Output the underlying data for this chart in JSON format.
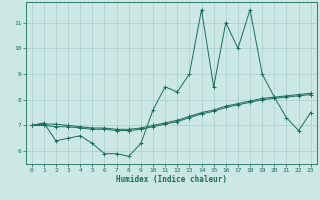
{
  "xlabel": "Humidex (Indice chaleur)",
  "bg_color": "#cce8e4",
  "line_color": "#1a6b5a",
  "grid_color": "#aacccc",
  "x_data": [
    0,
    1,
    2,
    3,
    4,
    5,
    6,
    7,
    8,
    9,
    10,
    11,
    12,
    13,
    14,
    15,
    16,
    17,
    18,
    19,
    20,
    21,
    22,
    23
  ],
  "series1": [
    7.0,
    7.1,
    6.4,
    6.5,
    6.6,
    6.3,
    5.9,
    5.9,
    5.8,
    6.3,
    7.6,
    8.5,
    8.3,
    9.0,
    11.5,
    8.5,
    11.0,
    10.0,
    11.5,
    9.0,
    8.1,
    7.3,
    6.8,
    7.5
  ],
  "series2": [
    7.0,
    7.05,
    7.05,
    7.0,
    6.95,
    6.9,
    6.9,
    6.85,
    6.85,
    6.9,
    7.0,
    7.1,
    7.2,
    7.35,
    7.5,
    7.6,
    7.75,
    7.85,
    7.95,
    8.05,
    8.1,
    8.15,
    8.2,
    8.25
  ],
  "series3": [
    7.0,
    7.0,
    6.95,
    6.95,
    6.9,
    6.85,
    6.85,
    6.8,
    6.8,
    6.85,
    6.95,
    7.05,
    7.15,
    7.3,
    7.45,
    7.55,
    7.7,
    7.8,
    7.9,
    8.0,
    8.05,
    8.1,
    8.15,
    8.2
  ],
  "ylim": [
    5.5,
    11.8
  ],
  "yticks": [
    6,
    7,
    8,
    9,
    10,
    11
  ],
  "xticks": [
    0,
    1,
    2,
    3,
    4,
    5,
    6,
    7,
    8,
    9,
    10,
    11,
    12,
    13,
    14,
    15,
    16,
    17,
    18,
    19,
    20,
    21,
    22,
    23
  ]
}
